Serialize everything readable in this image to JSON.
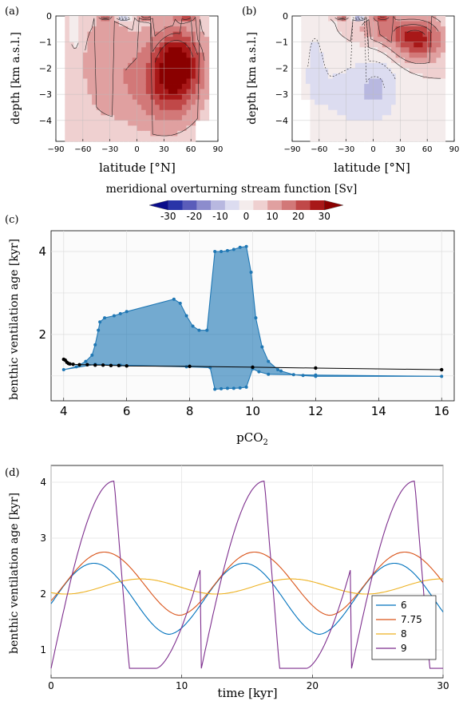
{
  "panel_labels": [
    "(a)",
    "(b)",
    "(c)",
    "(d)"
  ],
  "colorbar": {
    "label": "meridional overturning stream function [Sv]",
    "ticks": [
      "-30",
      "-20",
      "-10",
      "0",
      "10",
      "20",
      "30"
    ],
    "colors": [
      "#0a0d8c",
      "#2a34a8",
      "#5a5cba",
      "#8c8ccd",
      "#b8b8e0",
      "#dcdcf0",
      "#f4ecec",
      "#efd0d0",
      "#e0a0a0",
      "#d27878",
      "#c04848",
      "#a81818",
      "#8a0000"
    ]
  },
  "chart_data": [
    {
      "type": "heatmap",
      "panel": "(a)",
      "xlabel": "latitude [°N]",
      "ylabel": "depth [km a.s.l.]",
      "xticks": [
        "−90",
        "−60",
        "−30",
        "0",
        "30",
        "60",
        "90"
      ],
      "yticks": [
        "0",
        "−1",
        "−2",
        "−3",
        "−4"
      ],
      "xlim": [
        -90,
        90
      ],
      "ylim": [
        -4.8,
        0
      ]
    },
    {
      "type": "heatmap",
      "panel": "(b)",
      "xlabel": "latitude [°N]",
      "ylabel": "depth [km a.s.l.]",
      "xticks": [
        "−90",
        "−60",
        "−30",
        "0",
        "30",
        "60",
        "90"
      ],
      "yticks": [
        "0",
        "−1",
        "−2",
        "−3",
        "−4"
      ],
      "xlim": [
        -90,
        90
      ],
      "ylim": [
        -4.8,
        0
      ]
    },
    {
      "type": "area",
      "panel": "(c)",
      "xlabel": "pCO₂",
      "ylabel": "benthic ventilation age [kyr]",
      "xticks": [
        "4",
        "6",
        "8",
        "10",
        "12",
        "14",
        "16"
      ],
      "yticks": [
        "2",
        "4"
      ],
      "xlim": [
        3.6,
        16.4
      ],
      "ylim": [
        0.4,
        4.5
      ],
      "envelope_color": "#1f77b4",
      "line_color": "#000000",
      "envelope_outline": [
        [
          4.0,
          1.15
        ],
        [
          4.4,
          1.22
        ],
        [
          4.7,
          1.35
        ],
        [
          4.9,
          1.5
        ],
        [
          5.0,
          1.75
        ],
        [
          5.1,
          2.1
        ],
        [
          5.15,
          2.3
        ],
        [
          5.3,
          2.4
        ],
        [
          5.6,
          2.45
        ],
        [
          5.8,
          2.5
        ],
        [
          6.0,
          2.55
        ],
        [
          7.5,
          2.85
        ],
        [
          7.7,
          2.75
        ],
        [
          7.9,
          2.45
        ],
        [
          8.1,
          2.2
        ],
        [
          8.3,
          2.1
        ],
        [
          8.55,
          2.1
        ],
        [
          8.8,
          4.0
        ],
        [
          9.0,
          4.0
        ],
        [
          9.2,
          4.02
        ],
        [
          9.4,
          4.05
        ],
        [
          9.6,
          4.1
        ],
        [
          9.8,
          4.12
        ],
        [
          9.95,
          3.5
        ],
        [
          10.1,
          2.4
        ],
        [
          10.3,
          1.7
        ],
        [
          10.5,
          1.35
        ],
        [
          10.8,
          1.15
        ],
        [
          10.9,
          1.12
        ],
        [
          11.3,
          1.03
        ],
        [
          11.6,
          1.01
        ],
        [
          12.0,
          0.99
        ],
        [
          16.0,
          0.99
        ],
        [
          12.0,
          1.02
        ],
        [
          10.5,
          1.04
        ],
        [
          10.2,
          1.1
        ],
        [
          10.0,
          1.17
        ],
        [
          9.8,
          0.73
        ],
        [
          9.6,
          0.71
        ],
        [
          9.4,
          0.7
        ],
        [
          9.2,
          0.7
        ],
        [
          9.0,
          0.69
        ],
        [
          8.8,
          0.68
        ],
        [
          8.65,
          1.2
        ],
        [
          7.9,
          1.22
        ],
        [
          5.8,
          1.26
        ],
        [
          5.0,
          1.28
        ]
      ],
      "black_line": {
        "x": [
          4.0,
          4.05,
          4.1,
          4.15,
          4.2,
          4.3,
          4.5,
          4.75,
          5.0,
          5.25,
          5.5,
          5.75,
          6.0,
          8.0,
          10.0,
          12.0,
          16.0
        ],
        "y": [
          1.4,
          1.38,
          1.33,
          1.3,
          1.29,
          1.28,
          1.27,
          1.27,
          1.26,
          1.26,
          1.25,
          1.25,
          1.24,
          1.23,
          1.21,
          1.19,
          1.15
        ]
      }
    },
    {
      "type": "line",
      "panel": "(d)",
      "xlabel": "time [kyr]",
      "ylabel": "benthic ventilation age [kyr]",
      "xticks": [
        "0",
        "10",
        "20",
        "30"
      ],
      "yticks": [
        "1",
        "2",
        "3",
        "4"
      ],
      "xlim": [
        0,
        30
      ],
      "ylim": [
        0.5,
        4.3
      ],
      "legend_placement": "bottom-right",
      "series": [
        {
          "name": "6",
          "color": "#0072bd",
          "period": 11.5,
          "phase": 0.4,
          "min": 1.28,
          "max": 2.55,
          "shape": "smooth"
        },
        {
          "name": "7.75",
          "color": "#d95319",
          "period": 11.5,
          "phase": 1.2,
          "min": 1.62,
          "max": 2.75,
          "shape": "smooth"
        },
        {
          "name": "8",
          "color": "#edb120",
          "period": 11.5,
          "phase": 4.0,
          "min": 2.0,
          "max": 2.27,
          "shape": "sine"
        },
        {
          "name": "9",
          "color": "#7e2f8e",
          "period": 11.5,
          "phase": 0.0,
          "min": 0.67,
          "max": 4.02,
          "shape": "relax"
        }
      ]
    }
  ]
}
